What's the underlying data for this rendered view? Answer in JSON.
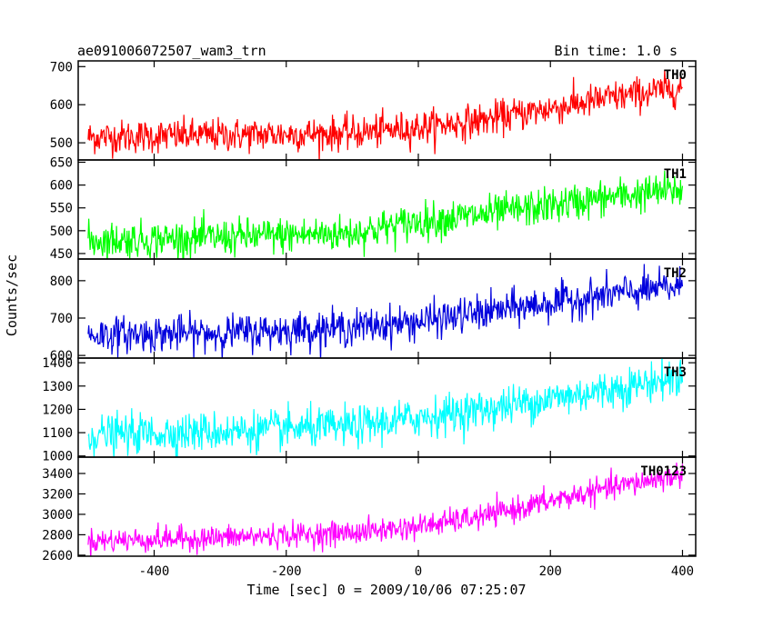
{
  "chart_data": {
    "type": "line",
    "title": "ae091006072507_wam3_trn",
    "bin_time_label": "Bin time: 1.0 s",
    "xlabel": "Time [sec] 0 = 2009/10/06 07:25:07",
    "ylabel": "Counts/sec",
    "xlim": [
      -515,
      420
    ],
    "xticks": [
      -400,
      -200,
      0,
      200,
      400
    ],
    "x_start": -500,
    "x_end": 400,
    "bin": 1.0,
    "series": [
      {
        "name": "TH0",
        "color": "#ff0000",
        "ylim": [
          455,
          715
        ],
        "yticks": [
          500,
          600,
          700
        ],
        "trend_x": [
          -500,
          -300,
          -100,
          0,
          100,
          200,
          300,
          400
        ],
        "trend_y": [
          515,
          520,
          525,
          540,
          560,
          590,
          620,
          645
        ],
        "noise": 22
      },
      {
        "name": "TH1",
        "color": "#00ff00",
        "ylim": [
          438,
          655
        ],
        "yticks": [
          450,
          500,
          550,
          600,
          650
        ],
        "trend_x": [
          -500,
          -300,
          -100,
          0,
          100,
          200,
          300,
          400
        ],
        "trend_y": [
          478,
          485,
          495,
          520,
          535,
          555,
          575,
          590
        ],
        "noise": 20
      },
      {
        "name": "TH2",
        "color": "#0000dd",
        "ylim": [
          593,
          858
        ],
        "yticks": [
          600,
          700,
          800
        ],
        "trend_x": [
          -500,
          -300,
          -100,
          0,
          100,
          200,
          300,
          400
        ],
        "trend_y": [
          655,
          660,
          675,
          690,
          715,
          740,
          765,
          785
        ],
        "noise": 24
      },
      {
        "name": "TH3",
        "color": "#00ffff",
        "ylim": [
          995,
          1420
        ],
        "yticks": [
          1000,
          1100,
          1200,
          1300,
          1400
        ],
        "trend_x": [
          -500,
          -300,
          -100,
          0,
          100,
          200,
          300,
          400
        ],
        "trend_y": [
          1090,
          1105,
          1125,
          1165,
          1200,
          1245,
          1290,
          1340
        ],
        "noise": 42
      },
      {
        "name": "TH0123",
        "color": "#ff00ff",
        "ylim": [
          2590,
          3560
        ],
        "yticks": [
          2600,
          2800,
          3000,
          3200,
          3400
        ],
        "trend_x": [
          -500,
          -300,
          -100,
          0,
          100,
          200,
          300,
          400
        ],
        "trend_y": [
          2740,
          2770,
          2820,
          2880,
          2980,
          3130,
          3270,
          3390
        ],
        "noise": 60
      }
    ]
  }
}
